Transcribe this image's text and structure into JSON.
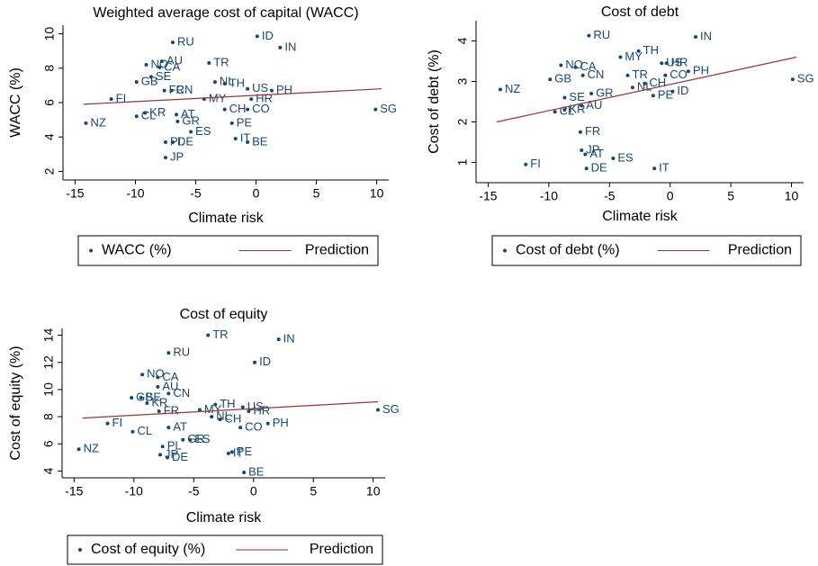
{
  "chart_data": [
    {
      "type": "scatter",
      "title": "Weighted average cost of capital (WACC)",
      "x_label": "Climate risk",
      "y_label": "WACC (%)",
      "xlim": [
        -16,
        11
      ],
      "ylim": [
        1.5,
        10.5
      ],
      "xticks": [
        -15,
        -10,
        -5,
        0,
        5,
        10
      ],
      "yticks": [
        2,
        4,
        6,
        8,
        10
      ],
      "series": [
        {
          "name": "WACC (%)",
          "mode": "markers",
          "color": "#1a476f",
          "labels": [
            "RU",
            "ID",
            "IN",
            "TR",
            "NO",
            "AU",
            "CA",
            "SE",
            "GB",
            "FI",
            "FR",
            "CN",
            "NL",
            "TH",
            "US",
            "PH",
            "HR",
            "MY",
            "CH",
            "CO",
            "SG",
            "KR",
            "CL",
            "AT",
            "GR",
            "NZ",
            "PE",
            "ES",
            "IT",
            "BE",
            "PL",
            "DE",
            "JP"
          ],
          "x": [
            -6.9,
            0.1,
            2.0,
            -3.9,
            -9.1,
            -7.8,
            -8.0,
            -8.7,
            -9.9,
            -12.0,
            -7.6,
            -7.0,
            -3.4,
            -2.6,
            -0.7,
            1.3,
            -0.4,
            -4.3,
            -2.6,
            -0.7,
            9.9,
            -9.2,
            -9.9,
            -6.6,
            -6.5,
            -14.1,
            -2.0,
            -5.4,
            -1.7,
            -0.7,
            -7.5,
            -6.9,
            -7.5
          ],
          "values": [
            9.5,
            9.85,
            9.2,
            8.3,
            8.2,
            8.4,
            8.05,
            7.5,
            7.2,
            6.2,
            6.7,
            6.7,
            7.2,
            7.1,
            6.8,
            6.7,
            6.2,
            6.2,
            5.6,
            5.6,
            5.6,
            5.4,
            5.2,
            5.3,
            4.9,
            4.8,
            4.8,
            4.3,
            3.9,
            3.7,
            3.7,
            3.7,
            2.8
          ]
        },
        {
          "name": "Prediction",
          "mode": "line",
          "color": "#90353b",
          "x": [
            -14.3,
            10.4
          ],
          "values": [
            5.9,
            6.8
          ]
        }
      ]
    },
    {
      "type": "scatter",
      "title": "Cost of debt",
      "x_label": "Climate risk",
      "y_label": "Cost of debt (%)",
      "xlim": [
        -16,
        11
      ],
      "ylim": [
        0.5,
        4.5
      ],
      "xticks": [
        -15,
        -10,
        -5,
        0,
        5,
        10
      ],
      "yticks": [
        1,
        2,
        3,
        4
      ],
      "series": [
        {
          "name": "Cost of debt (%)",
          "mode": "markers",
          "color": "#1a476f",
          "labels": [
            "RU",
            "IN",
            "TH",
            "MY",
            "NO",
            "CA",
            "CN",
            "GB",
            "NZ",
            "TR",
            "US",
            "HR",
            "CO",
            "PH",
            "CH",
            "NL",
            "PE",
            "ID",
            "SG",
            "SE",
            "GR",
            "AU",
            "KR",
            "CL",
            "FR",
            "JP",
            "AT",
            "ES",
            "FI",
            "DE",
            "IT"
          ],
          "x": [
            -6.7,
            2.1,
            -2.6,
            -4.1,
            -9.0,
            -7.8,
            -7.2,
            -9.9,
            -14.0,
            -3.5,
            -0.7,
            -0.3,
            -0.4,
            1.5,
            -2.1,
            -3.1,
            -1.4,
            0.2,
            10.1,
            -8.7,
            -6.5,
            -7.3,
            -8.7,
            -9.5,
            -7.4,
            -7.3,
            -7.0,
            -4.7,
            -11.9,
            -6.9,
            -1.3
          ],
          "values": [
            4.13,
            4.1,
            3.75,
            3.6,
            3.4,
            3.35,
            3.15,
            3.05,
            2.8,
            3.15,
            3.45,
            3.45,
            3.15,
            3.25,
            2.95,
            2.85,
            2.65,
            2.75,
            3.05,
            2.6,
            2.7,
            2.4,
            2.3,
            2.25,
            1.75,
            1.3,
            1.2,
            1.1,
            0.95,
            0.85,
            0.85
          ]
        },
        {
          "name": "Prediction",
          "mode": "line",
          "color": "#90353b",
          "x": [
            -14.3,
            10.4
          ],
          "values": [
            2.0,
            3.6
          ]
        }
      ]
    },
    {
      "type": "scatter",
      "title": "Cost of equity",
      "x_label": "Climate risk",
      "y_label": "Cost of equity (%)",
      "xlim": [
        -16,
        11
      ],
      "ylim": [
        3.5,
        14.5
      ],
      "xticks": [
        -15,
        -10,
        -5,
        0,
        5,
        10
      ],
      "yticks": [
        4,
        6,
        8,
        10,
        12,
        14
      ],
      "series": [
        {
          "name": "Cost of equity (%)",
          "mode": "markers",
          "color": "#1a476f",
          "labels": [
            "TR",
            "IN",
            "RU",
            "ID",
            "NO",
            "CA",
            "AU",
            "CN",
            "GB",
            "SE",
            "KR",
            "FR",
            "MY",
            "TH",
            "US",
            "HR",
            "NL",
            "CH",
            "SG",
            "PH",
            "CO",
            "FI",
            "AT",
            "CL",
            "ES",
            "GR",
            "PL",
            "NZ",
            "PE",
            "IT",
            "JP",
            "DE",
            "BE"
          ],
          "x": [
            -3.8,
            2.1,
            -7.1,
            0.1,
            -9.3,
            -8.0,
            -8.0,
            -7.1,
            -10.2,
            -9.4,
            -8.9,
            -7.9,
            -4.5,
            -3.2,
            -0.9,
            -0.4,
            -3.5,
            -2.8,
            10.4,
            1.2,
            -1.1,
            -12.2,
            -7.1,
            -10.1,
            -5.3,
            -5.9,
            -7.6,
            -14.6,
            -1.8,
            -2.1,
            -7.8,
            -7.2,
            -0.8
          ],
          "values": [
            14.0,
            13.7,
            12.7,
            12.0,
            11.1,
            10.9,
            10.2,
            9.7,
            9.4,
            9.4,
            9.0,
            8.4,
            8.5,
            8.9,
            8.7,
            8.4,
            8.0,
            7.8,
            8.5,
            7.5,
            7.2,
            7.5,
            7.2,
            6.9,
            6.3,
            6.3,
            5.8,
            5.6,
            5.4,
            5.3,
            5.2,
            5.0,
            3.9
          ]
        },
        {
          "name": "Prediction",
          "mode": "line",
          "color": "#90353b",
          "x": [
            -14.3,
            10.4
          ],
          "values": [
            7.9,
            9.1
          ]
        }
      ]
    }
  ]
}
